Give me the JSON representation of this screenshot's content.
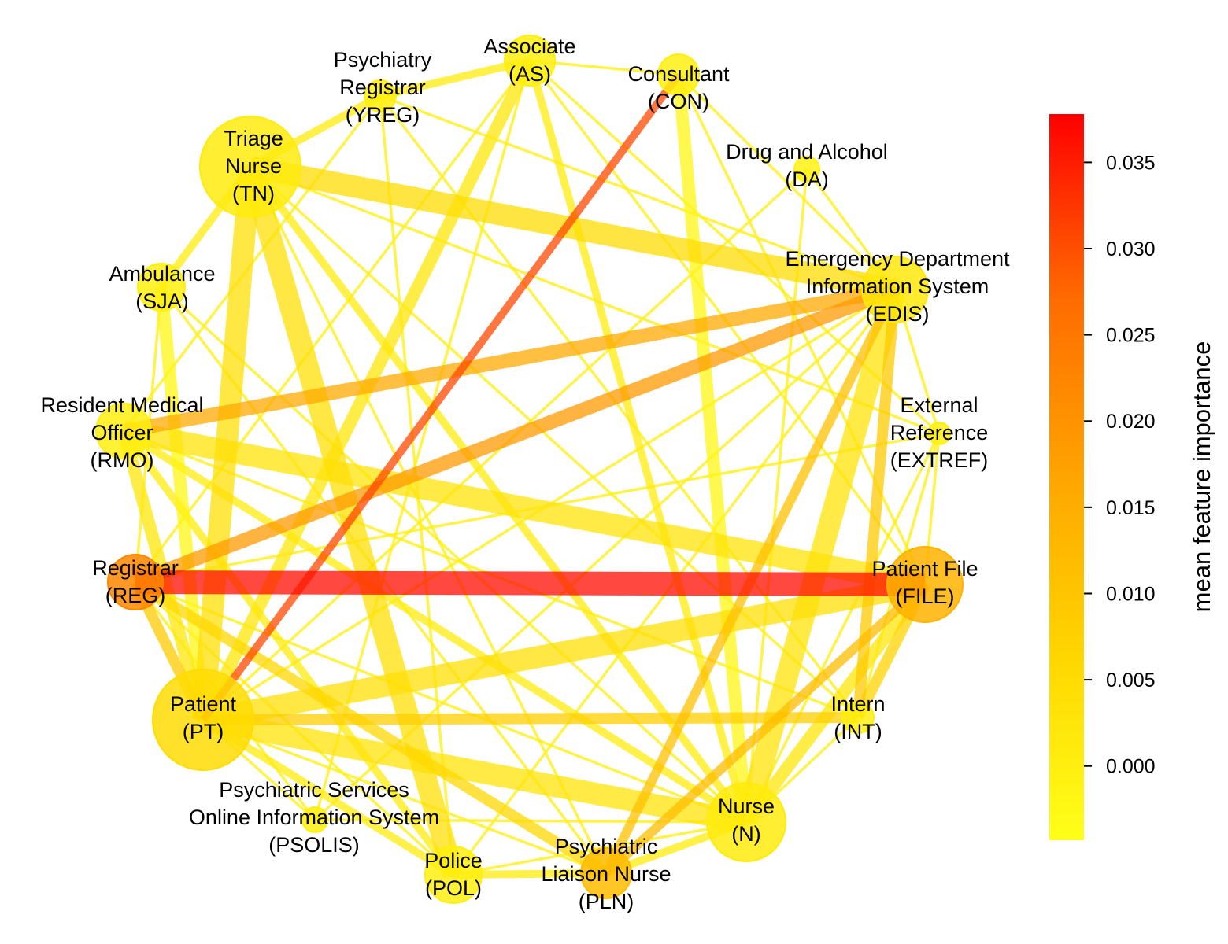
{
  "colorbar": {
    "label": "mean feature importance",
    "min": -0.0043,
    "max": 0.0378,
    "ticks": [
      "0.000",
      "0.005",
      "0.010",
      "0.015",
      "0.020",
      "0.025",
      "0.030",
      "0.035"
    ],
    "tick_values": [
      0.0,
      0.005,
      0.01,
      0.015,
      0.02,
      0.025,
      0.03,
      0.035
    ],
    "colors": [
      "#ffff1a",
      "#ffd700",
      "#ffa500",
      "#ff4500",
      "#ff0000"
    ]
  },
  "nodes": [
    {
      "id": "AS",
      "lines": [
        "Associate",
        "(AS)"
      ],
      "importance": 0.0
    },
    {
      "id": "YREG",
      "lines": [
        "Psychiatry",
        "Registrar",
        "(YREG)"
      ],
      "importance": 0.0
    },
    {
      "id": "CON",
      "lines": [
        "Consultant",
        "(CON)"
      ],
      "importance": 0.0
    },
    {
      "id": "TN",
      "lines": [
        "Triage",
        "Nurse",
        "(TN)"
      ],
      "importance": 0.001
    },
    {
      "id": "DA",
      "lines": [
        "Drug and Alcohol",
        "(DA)"
      ],
      "importance": -0.001
    },
    {
      "id": "SJA",
      "lines": [
        "Ambulance",
        "(SJA)"
      ],
      "importance": 0.0
    },
    {
      "id": "EDIS",
      "lines": [
        "Emergency Department",
        "Information System",
        "(EDIS)"
      ],
      "importance": 0.002
    },
    {
      "id": "RMO",
      "lines": [
        "Resident Medical",
        "Officer",
        "(RMO)"
      ],
      "importance": 0.0
    },
    {
      "id": "EXTREF",
      "lines": [
        "External",
        "Reference",
        "(EXTREF)"
      ],
      "importance": 0.0
    },
    {
      "id": "REG",
      "lines": [
        "Registrar",
        "(REG)"
      ],
      "importance": 0.02
    },
    {
      "id": "FILE",
      "lines": [
        "Patient File",
        "(FILE)"
      ],
      "importance": 0.014
    },
    {
      "id": "PT",
      "lines": [
        "Patient",
        "(PT)"
      ],
      "importance": 0.005
    },
    {
      "id": "INT",
      "lines": [
        "Intern",
        "(INT)"
      ],
      "importance": 0.0
    },
    {
      "id": "PSOLIS",
      "lines": [
        "Psychiatric Services",
        "Online Information System",
        "(PSOLIS)"
      ],
      "importance": 0.0
    },
    {
      "id": "N",
      "lines": [
        "Nurse",
        "(N)"
      ],
      "importance": 0.001
    },
    {
      "id": "POL",
      "lines": [
        "Police",
        "(POL)"
      ],
      "importance": 0.0
    },
    {
      "id": "PLN",
      "lines": [
        "Psychiatric",
        "Liaison Nurse",
        "(PLN)"
      ],
      "importance": 0.012
    }
  ],
  "edges": [
    {
      "source": "REG",
      "target": "FILE",
      "importance": 0.036
    },
    {
      "source": "REG",
      "target": "EDIS",
      "importance": 0.018
    },
    {
      "source": "RMO",
      "target": "EDIS",
      "importance": 0.016
    },
    {
      "source": "PT",
      "target": "CON",
      "importance": 0.027
    },
    {
      "source": "TN",
      "target": "EDIS",
      "importance": 0.005
    },
    {
      "source": "TN",
      "target": "PT",
      "importance": 0.004
    },
    {
      "source": "TN",
      "target": "POL",
      "importance": 0.004
    },
    {
      "source": "PT",
      "target": "N",
      "importance": 0.003
    },
    {
      "source": "PT",
      "target": "INT",
      "importance": 0.008
    },
    {
      "source": "PT",
      "target": "FILE",
      "importance": 0.004
    },
    {
      "source": "PT",
      "target": "AS",
      "importance": 0.002
    },
    {
      "source": "RMO",
      "target": "FILE",
      "importance": 0.003
    },
    {
      "source": "PLN",
      "target": "EDIS",
      "importance": 0.011
    },
    {
      "source": "PLN",
      "target": "FILE",
      "importance": 0.012
    },
    {
      "source": "INT",
      "target": "EDIS",
      "importance": 0.009
    },
    {
      "source": "INT",
      "target": "FILE",
      "importance": 0.007
    },
    {
      "source": "N",
      "target": "EDIS",
      "importance": 0.003
    },
    {
      "source": "N",
      "target": "FILE",
      "importance": 0.002
    },
    {
      "source": "REG",
      "target": "PLN",
      "importance": 0.006
    },
    {
      "source": "REG",
      "target": "PT",
      "importance": 0.009
    },
    {
      "source": "SJA",
      "target": "PT",
      "importance": -0.002
    },
    {
      "source": "TN",
      "target": "YREG",
      "importance": 0.001
    },
    {
      "source": "YREG",
      "target": "AS",
      "importance": 0.001
    },
    {
      "source": "TN",
      "target": "N",
      "importance": 0.001
    },
    {
      "source": "RMO",
      "target": "PT",
      "importance": 0.002
    },
    {
      "source": "RMO",
      "target": "POL",
      "importance": 0.001
    },
    {
      "source": "RMO",
      "target": "N",
      "importance": 0.001
    },
    {
      "source": "AS",
      "target": "N",
      "importance": 0.001
    },
    {
      "source": "AS",
      "target": "CON",
      "importance": 0.0
    },
    {
      "source": "AS",
      "target": "REG",
      "importance": 0.0
    },
    {
      "source": "AS",
      "target": "EXTREF",
      "importance": 0.0
    },
    {
      "source": "AS",
      "target": "FILE",
      "importance": 0.0
    },
    {
      "source": "AS",
      "target": "PSOLIS",
      "importance": 0.0
    },
    {
      "source": "CON",
      "target": "N",
      "importance": -0.002
    },
    {
      "source": "CON",
      "target": "FILE",
      "importance": 0.0
    },
    {
      "source": "CON",
      "target": "EDIS",
      "importance": 0.0
    },
    {
      "source": "DA",
      "target": "EDIS",
      "importance": 0.0
    },
    {
      "source": "DA",
      "target": "N",
      "importance": 0.0
    },
    {
      "source": "DA",
      "target": "PT",
      "importance": 0.0
    },
    {
      "source": "YREG",
      "target": "EDIS",
      "importance": 0.0
    },
    {
      "source": "YREG",
      "target": "POL",
      "importance": 0.0
    },
    {
      "source": "YREG",
      "target": "INT",
      "importance": 0.0
    },
    {
      "source": "YREG",
      "target": "RMO",
      "importance": 0.0
    },
    {
      "source": "TN",
      "target": "EXTREF",
      "importance": 0.0
    },
    {
      "source": "TN",
      "target": "INT",
      "importance": 0.0
    },
    {
      "source": "TN",
      "target": "SJA",
      "importance": 0.001
    },
    {
      "source": "TN",
      "target": "PLN",
      "importance": 0.0
    },
    {
      "source": "SJA",
      "target": "N",
      "importance": 0.0
    },
    {
      "source": "SJA",
      "target": "PLN",
      "importance": 0.0
    },
    {
      "source": "SJA",
      "target": "REG",
      "importance": 0.0
    },
    {
      "source": "RMO",
      "target": "INT",
      "importance": 0.0
    },
    {
      "source": "REG",
      "target": "N",
      "importance": 0.0
    },
    {
      "source": "REG",
      "target": "POL",
      "importance": 0.0
    },
    {
      "source": "REG",
      "target": "PSOLIS",
      "importance": 0.0
    },
    {
      "source": "REG",
      "target": "EXTREF",
      "importance": 0.0
    },
    {
      "source": "PT",
      "target": "EDIS",
      "importance": 0.0
    },
    {
      "source": "PT",
      "target": "PLN",
      "importance": 0.0
    },
    {
      "source": "PT",
      "target": "POL",
      "importance": 0.001
    },
    {
      "source": "PT",
      "target": "PSOLIS",
      "importance": 0.0
    },
    {
      "source": "POL",
      "target": "PLN",
      "importance": 0.001
    },
    {
      "source": "POL",
      "target": "EDIS",
      "importance": 0.0
    },
    {
      "source": "POL",
      "target": "N",
      "importance": 0.0
    },
    {
      "source": "N",
      "target": "PLN",
      "importance": 0.001
    },
    {
      "source": "N",
      "target": "EXTREF",
      "importance": 0.0
    },
    {
      "source": "N",
      "target": "INT",
      "importance": 0.0
    },
    {
      "source": "EXTREF",
      "target": "INT",
      "importance": 0.0
    },
    {
      "source": "EXTREF",
      "target": "FILE",
      "importance": 0.0
    },
    {
      "source": "EXTREF",
      "target": "EDIS",
      "importance": 0.0
    },
    {
      "source": "PSOLIS",
      "target": "EDIS",
      "importance": 0.0
    },
    {
      "source": "PSOLIS",
      "target": "N",
      "importance": 0.0
    }
  ]
}
